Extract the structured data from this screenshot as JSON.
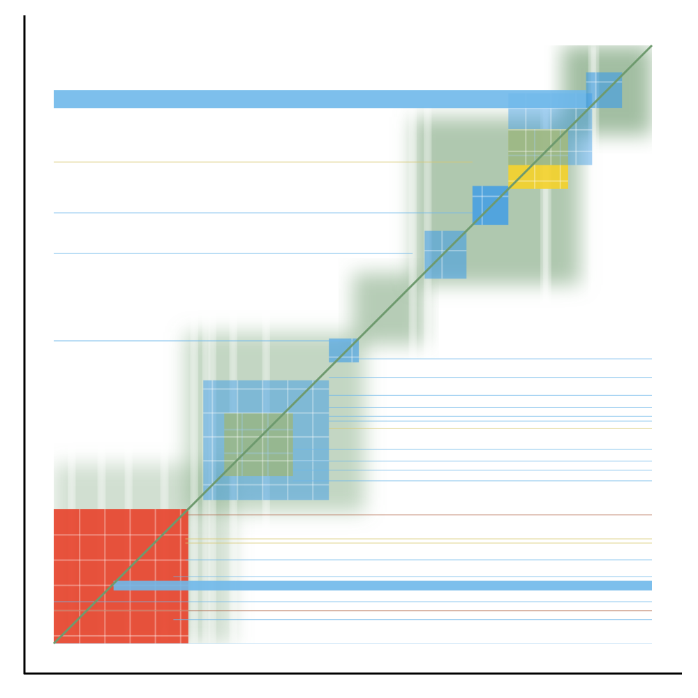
{
  "chart_data": {
    "type": "heatmap",
    "title": "",
    "xlabel": "",
    "ylabel": "",
    "axes": {
      "left_spine": true,
      "bottom_spine": true,
      "ticks": false,
      "grid": false
    },
    "colors": {
      "background": "#ffffff",
      "axis": "#000000",
      "diagonal": "#6e9a6e",
      "shade": "#7aa37a",
      "blue": "#3b9be8",
      "yellow": "#f5d22a",
      "red": "#e8412a",
      "hline_blue": "#6fb8ea",
      "hline_yellow": "#d8c870",
      "hline_brown": "#b0684a"
    },
    "diagonal_shading": [
      {
        "start": 0.0,
        "end": 0.3,
        "level": 0.35
      },
      {
        "start": 0.22,
        "end": 0.52,
        "level": 0.45
      },
      {
        "start": 0.5,
        "end": 0.62,
        "level": 0.55
      },
      {
        "start": 0.6,
        "end": 0.88,
        "level": 0.6
      },
      {
        "start": 0.85,
        "end": 1.0,
        "level": 0.7
      }
    ],
    "blocks": [
      {
        "color": "red",
        "x0": 0.0,
        "x1": 0.225,
        "y0": 0.0,
        "y1": 0.225,
        "density": 0.9
      },
      {
        "color": "yellow",
        "x0": 0.285,
        "x1": 0.4,
        "y0": 0.28,
        "y1": 0.385,
        "density": 0.9
      },
      {
        "color": "blue",
        "x0": 0.25,
        "x1": 0.46,
        "y0": 0.24,
        "y1": 0.44,
        "density": 0.5
      },
      {
        "color": "blue",
        "x0": 0.46,
        "x1": 0.51,
        "y0": 0.47,
        "y1": 0.51,
        "density": 0.6
      },
      {
        "color": "blue",
        "x0": 0.62,
        "x1": 0.69,
        "y0": 0.61,
        "y1": 0.69,
        "density": 0.55
      },
      {
        "color": "blue",
        "x0": 0.7,
        "x1": 0.76,
        "y0": 0.7,
        "y1": 0.765,
        "density": 0.8
      },
      {
        "color": "yellow",
        "x0": 0.76,
        "x1": 0.86,
        "y0": 0.76,
        "y1": 0.86,
        "density": 0.9
      },
      {
        "color": "blue",
        "x0": 0.76,
        "x1": 0.9,
        "y0": 0.8,
        "y1": 0.92,
        "density": 0.45
      },
      {
        "color": "blue",
        "x0": 0.89,
        "x1": 0.95,
        "y0": 0.895,
        "y1": 0.955,
        "density": 0.6
      }
    ],
    "horizontal_lines": [
      {
        "y": 0.91,
        "color": "hline_blue",
        "thickness": 26,
        "x0": 0.0,
        "x1": 0.89
      },
      {
        "y": 0.805,
        "color": "hline_yellow",
        "thickness": 1,
        "x0": 0.0,
        "x1": 0.7
      },
      {
        "y": 0.72,
        "color": "hline_blue",
        "thickness": 1,
        "x0": 0.0,
        "x1": 0.7
      },
      {
        "y": 0.652,
        "color": "hline_blue",
        "thickness": 1,
        "x0": 0.0,
        "x1": 0.6
      },
      {
        "y": 0.506,
        "color": "hline_blue",
        "thickness": 1.5,
        "x0": 0.0,
        "x1": 0.5
      },
      {
        "y": 0.476,
        "color": "hline_blue",
        "thickness": 1,
        "x0": 0.5,
        "x1": 1.0
      },
      {
        "y": 0.445,
        "color": "hline_blue",
        "thickness": 1,
        "x0": 0.46,
        "x1": 1.0
      },
      {
        "y": 0.415,
        "color": "hline_blue",
        "thickness": 1,
        "x0": 0.46,
        "x1": 1.0
      },
      {
        "y": 0.395,
        "color": "hline_blue",
        "thickness": 1,
        "x0": 0.46,
        "x1": 1.0
      },
      {
        "y": 0.38,
        "color": "hline_blue",
        "thickness": 1,
        "x0": 0.46,
        "x1": 1.0
      },
      {
        "y": 0.372,
        "color": "hline_blue",
        "thickness": 1,
        "x0": 0.46,
        "x1": 1.0
      },
      {
        "y": 0.36,
        "color": "hline_yellow",
        "thickness": 1,
        "x0": 0.46,
        "x1": 1.0
      },
      {
        "y": 0.325,
        "color": "hline_blue",
        "thickness": 1,
        "x0": 0.4,
        "x1": 1.0
      },
      {
        "y": 0.305,
        "color": "hline_blue",
        "thickness": 1,
        "x0": 0.4,
        "x1": 1.0
      },
      {
        "y": 0.29,
        "color": "hline_blue",
        "thickness": 1,
        "x0": 0.4,
        "x1": 1.0
      },
      {
        "y": 0.272,
        "color": "hline_blue",
        "thickness": 1,
        "x0": 0.4,
        "x1": 1.0
      },
      {
        "y": 0.215,
        "color": "hline_brown",
        "thickness": 1,
        "x0": 0.22,
        "x1": 1.0
      },
      {
        "y": 0.175,
        "color": "hline_yellow",
        "thickness": 1,
        "x0": 0.22,
        "x1": 1.0
      },
      {
        "y": 0.168,
        "color": "hline_yellow",
        "thickness": 1,
        "x0": 0.22,
        "x1": 1.0
      },
      {
        "y": 0.14,
        "color": "hline_blue",
        "thickness": 1,
        "x0": 0.22,
        "x1": 1.0
      },
      {
        "y": 0.112,
        "color": "hline_blue",
        "thickness": 1,
        "x0": 0.2,
        "x1": 1.0
      },
      {
        "y": 0.097,
        "color": "hline_blue",
        "thickness": 14,
        "x0": 0.1,
        "x1": 1.0
      },
      {
        "y": 0.07,
        "color": "hline_blue",
        "thickness": 1,
        "x0": 0.0,
        "x1": 1.0
      },
      {
        "y": 0.055,
        "color": "hline_brown",
        "thickness": 1,
        "x0": 0.0,
        "x1": 1.0
      },
      {
        "y": 0.04,
        "color": "hline_blue",
        "thickness": 1,
        "x0": 0.2,
        "x1": 1.0
      },
      {
        "y": 0.0,
        "color": "hline_blue",
        "thickness": 1,
        "x0": 0.0,
        "x1": 1.0
      }
    ],
    "vertical_gaps": [
      0.03,
      0.08,
      0.125,
      0.185,
      0.235,
      0.255,
      0.265,
      0.3,
      0.355,
      0.6,
      0.625,
      0.82,
      0.825,
      0.9,
      0.905
    ]
  }
}
